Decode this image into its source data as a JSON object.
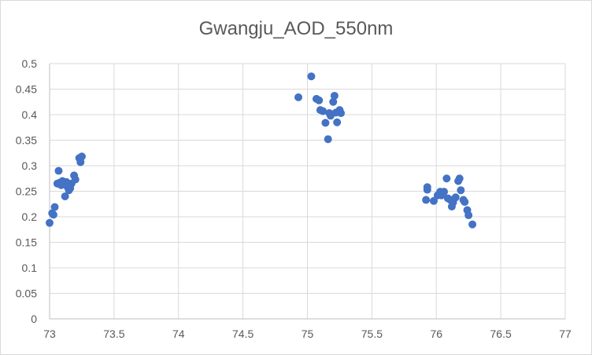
{
  "chart_data": {
    "type": "scatter",
    "title": "Gwangju_AOD_550nm",
    "xlabel": "",
    "ylabel": "",
    "xlim": [
      73,
      77
    ],
    "ylim": [
      0,
      0.5
    ],
    "x_ticks": [
      73,
      73.5,
      74,
      74.5,
      75,
      75.5,
      76,
      76.5,
      77
    ],
    "x_tick_labels": [
      "73",
      "73.5",
      "74",
      "74.5",
      "75",
      "75.5",
      "76",
      "76.5",
      "77"
    ],
    "y_ticks": [
      0,
      0.05,
      0.1,
      0.15,
      0.2,
      0.25,
      0.3,
      0.35,
      0.4,
      0.45,
      0.5
    ],
    "y_tick_labels": [
      "0",
      "0.05",
      "0.1",
      "0.15",
      "0.2",
      "0.25",
      "0.3",
      "0.35",
      "0.4",
      "0.45",
      "0.5"
    ],
    "grid": true,
    "legend": "none",
    "marker_color": "#4472c4",
    "series": [
      {
        "points": [
          [
            73.0,
            0.188
          ],
          [
            73.02,
            0.207
          ],
          [
            73.03,
            0.204
          ],
          [
            73.04,
            0.219
          ],
          [
            73.06,
            0.265
          ],
          [
            73.07,
            0.29
          ],
          [
            73.08,
            0.267
          ],
          [
            73.09,
            0.262
          ],
          [
            73.1,
            0.27
          ],
          [
            73.11,
            0.265
          ],
          [
            73.12,
            0.24
          ],
          [
            73.13,
            0.268
          ],
          [
            73.14,
            0.258
          ],
          [
            73.15,
            0.252
          ],
          [
            73.16,
            0.256
          ],
          [
            73.17,
            0.265
          ],
          [
            73.19,
            0.281
          ],
          [
            73.2,
            0.273
          ],
          [
            73.23,
            0.315
          ],
          [
            73.24,
            0.307
          ],
          [
            73.25,
            0.318
          ],
          [
            74.93,
            0.434
          ],
          [
            75.03,
            0.475
          ],
          [
            75.07,
            0.431
          ],
          [
            75.09,
            0.428
          ],
          [
            75.1,
            0.409
          ],
          [
            75.12,
            0.407
          ],
          [
            75.14,
            0.384
          ],
          [
            75.16,
            0.352
          ],
          [
            75.17,
            0.403
          ],
          [
            75.18,
            0.398
          ],
          [
            75.2,
            0.425
          ],
          [
            75.21,
            0.437
          ],
          [
            75.22,
            0.404
          ],
          [
            75.23,
            0.385
          ],
          [
            75.25,
            0.409
          ],
          [
            75.26,
            0.403
          ],
          [
            75.92,
            0.233
          ],
          [
            75.93,
            0.258
          ],
          [
            75.93,
            0.253
          ],
          [
            75.98,
            0.231
          ],
          [
            76.01,
            0.242
          ],
          [
            76.03,
            0.249
          ],
          [
            76.04,
            0.242
          ],
          [
            76.06,
            0.249
          ],
          [
            76.08,
            0.275
          ],
          [
            76.09,
            0.236
          ],
          [
            76.11,
            0.233
          ],
          [
            76.12,
            0.22
          ],
          [
            76.13,
            0.228
          ],
          [
            76.15,
            0.238
          ],
          [
            76.17,
            0.27
          ],
          [
            76.18,
            0.275
          ],
          [
            76.19,
            0.252
          ],
          [
            76.21,
            0.233
          ],
          [
            76.22,
            0.229
          ],
          [
            76.24,
            0.213
          ],
          [
            76.25,
            0.203
          ],
          [
            76.28,
            0.185
          ]
        ]
      }
    ]
  }
}
